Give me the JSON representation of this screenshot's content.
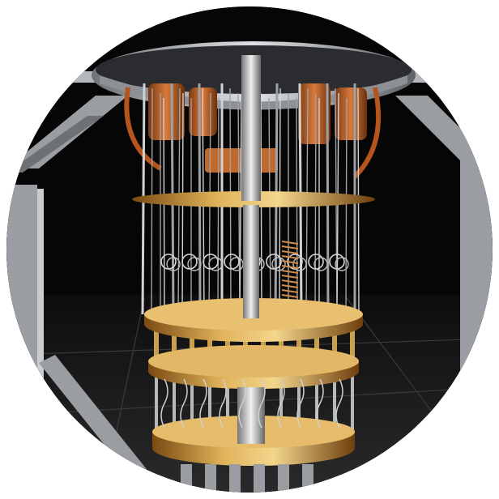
{
  "image": {
    "subject": "cryogenic-chandelier",
    "shape": "circle",
    "colors": {
      "backdrop": "#070707",
      "floor": "#1a1a1a",
      "copper": "#c46a2b",
      "gold": "#d9a441",
      "steel": "#b9bcc0",
      "frame": "#8f9398"
    }
  }
}
